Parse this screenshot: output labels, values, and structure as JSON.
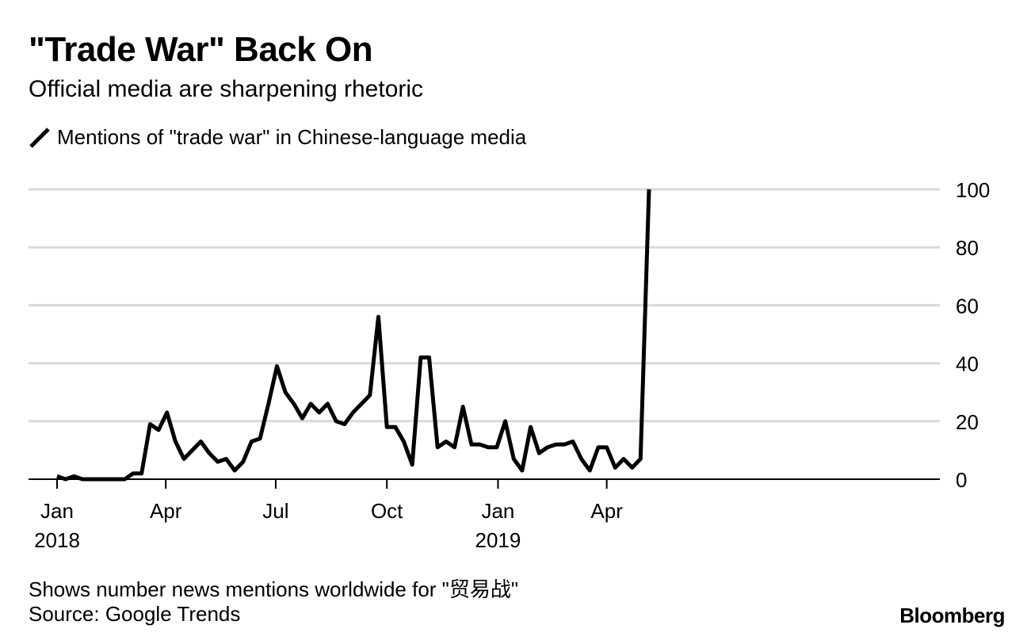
{
  "header": {
    "title": "\"Trade War\" Back On",
    "subtitle": "Official media are sharpening rhetoric"
  },
  "footer": {
    "note": "Shows number news mentions worldwide for \"贸易战\"",
    "source": "Source: Google Trends",
    "brand": "Bloomberg"
  },
  "colors": {
    "line": "#000000",
    "grid": "#d9d9d9",
    "axis": "#000000"
  },
  "chart_data": {
    "type": "line",
    "title": "\"Trade War\" Back On",
    "subtitle": "Official media are sharpening rhetoric",
    "legend_position": "top-left",
    "grid": true,
    "x_start": "2018-01-01",
    "x_end": "2019-05-12",
    "ylim": [
      0,
      100
    ],
    "y_ticks": [
      0,
      20,
      40,
      60,
      80,
      100
    ],
    "y_axis_side": "right",
    "x_ticks": [
      {
        "date": "2018-01-01",
        "label": "Jan",
        "sublabel": "2018"
      },
      {
        "date": "2018-04-01",
        "label": "Apr",
        "sublabel": ""
      },
      {
        "date": "2018-07-01",
        "label": "Jul",
        "sublabel": ""
      },
      {
        "date": "2018-10-01",
        "label": "Oct",
        "sublabel": ""
      },
      {
        "date": "2019-01-01",
        "label": "Jan",
        "sublabel": "2019"
      },
      {
        "date": "2019-04-01",
        "label": "Apr",
        "sublabel": ""
      }
    ],
    "series": [
      {
        "name": "Mentions of \"trade war\" in Chinese-language media",
        "points": [
          [
            "2018-01-01",
            1
          ],
          [
            "2018-01-08",
            0
          ],
          [
            "2018-01-15",
            1
          ],
          [
            "2018-01-22",
            0
          ],
          [
            "2018-01-29",
            0
          ],
          [
            "2018-02-05",
            0
          ],
          [
            "2018-02-12",
            0
          ],
          [
            "2018-02-19",
            0
          ],
          [
            "2018-02-26",
            0
          ],
          [
            "2018-03-05",
            2
          ],
          [
            "2018-03-12",
            2
          ],
          [
            "2018-03-19",
            19
          ],
          [
            "2018-03-26",
            17
          ],
          [
            "2018-04-02",
            23
          ],
          [
            "2018-04-09",
            13
          ],
          [
            "2018-04-16",
            7
          ],
          [
            "2018-04-23",
            10
          ],
          [
            "2018-04-30",
            13
          ],
          [
            "2018-05-07",
            9
          ],
          [
            "2018-05-14",
            6
          ],
          [
            "2018-05-21",
            7
          ],
          [
            "2018-05-28",
            3
          ],
          [
            "2018-06-04",
            6
          ],
          [
            "2018-06-11",
            13
          ],
          [
            "2018-06-18",
            14
          ],
          [
            "2018-06-25",
            26
          ],
          [
            "2018-07-02",
            39
          ],
          [
            "2018-07-09",
            30
          ],
          [
            "2018-07-16",
            26
          ],
          [
            "2018-07-23",
            21
          ],
          [
            "2018-07-30",
            26
          ],
          [
            "2018-08-06",
            23
          ],
          [
            "2018-08-13",
            26
          ],
          [
            "2018-08-20",
            20
          ],
          [
            "2018-08-27",
            19
          ],
          [
            "2018-09-03",
            23
          ],
          [
            "2018-09-10",
            26
          ],
          [
            "2018-09-17",
            29
          ],
          [
            "2018-09-24",
            56
          ],
          [
            "2018-10-01",
            18
          ],
          [
            "2018-10-08",
            18
          ],
          [
            "2018-10-15",
            13
          ],
          [
            "2018-10-22",
            5
          ],
          [
            "2018-10-29",
            42
          ],
          [
            "2018-11-05",
            42
          ],
          [
            "2018-11-12",
            11
          ],
          [
            "2018-11-19",
            13
          ],
          [
            "2018-11-26",
            11
          ],
          [
            "2018-12-03",
            25
          ],
          [
            "2018-12-10",
            12
          ],
          [
            "2018-12-17",
            12
          ],
          [
            "2018-12-24",
            11
          ],
          [
            "2018-12-31",
            11
          ],
          [
            "2019-01-07",
            20
          ],
          [
            "2019-01-14",
            7
          ],
          [
            "2019-01-21",
            3
          ],
          [
            "2019-01-28",
            18
          ],
          [
            "2019-02-04",
            9
          ],
          [
            "2019-02-11",
            11
          ],
          [
            "2019-02-18",
            12
          ],
          [
            "2019-02-25",
            12
          ],
          [
            "2019-03-04",
            13
          ],
          [
            "2019-03-11",
            7
          ],
          [
            "2019-03-18",
            3
          ],
          [
            "2019-03-25",
            11
          ],
          [
            "2019-04-01",
            11
          ],
          [
            "2019-04-08",
            4
          ],
          [
            "2019-04-15",
            7
          ],
          [
            "2019-04-22",
            4
          ],
          [
            "2019-04-29",
            7
          ],
          [
            "2019-05-06",
            100
          ]
        ]
      }
    ]
  }
}
